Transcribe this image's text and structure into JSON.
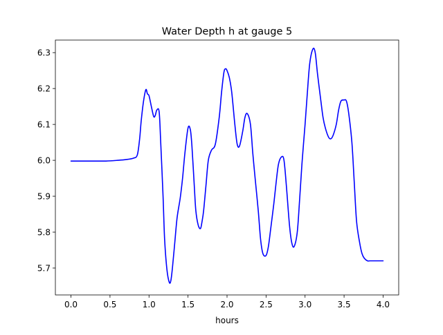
{
  "chart_data": {
    "type": "line",
    "title": "Water Depth h at gauge 5",
    "xlabel": "hours",
    "ylabel": "",
    "xlim": [
      -0.2,
      4.2
    ],
    "ylim": [
      5.625,
      6.335
    ],
    "x_ticks": [
      0.0,
      0.5,
      1.0,
      1.5,
      2.0,
      2.5,
      3.0,
      3.5,
      4.0
    ],
    "x_tick_labels": [
      "0.0",
      "0.5",
      "1.0",
      "1.5",
      "2.0",
      "2.5",
      "3.0",
      "3.5",
      "4.0"
    ],
    "y_ticks": [
      5.7,
      5.8,
      5.9,
      6.0,
      6.1,
      6.2,
      6.3
    ],
    "y_tick_labels": [
      "5.7",
      "5.8",
      "5.9",
      "6.0",
      "6.1",
      "6.2",
      "6.3"
    ],
    "grid": false,
    "legend": "none",
    "series": [
      {
        "color": "#0000ff",
        "x": [
          0.0,
          0.3,
          0.45,
          0.6,
          0.7,
          0.8,
          0.85,
          0.88,
          0.9,
          0.93,
          0.96,
          0.98,
          1.0,
          1.03,
          1.06,
          1.08,
          1.1,
          1.13,
          1.15,
          1.18,
          1.2,
          1.23,
          1.26,
          1.28,
          1.3,
          1.33,
          1.36,
          1.4,
          1.43,
          1.46,
          1.5,
          1.53,
          1.55,
          1.58,
          1.6,
          1.63,
          1.66,
          1.68,
          1.7,
          1.73,
          1.76,
          1.8,
          1.85,
          1.9,
          1.93,
          1.96,
          1.98,
          2.0,
          2.03,
          2.06,
          2.1,
          2.13,
          2.16,
          2.2,
          2.23,
          2.26,
          2.3,
          2.33,
          2.36,
          2.4,
          2.43,
          2.46,
          2.5,
          2.53,
          2.56,
          2.6,
          2.63,
          2.66,
          2.7,
          2.73,
          2.76,
          2.8,
          2.83,
          2.86,
          2.9,
          2.93,
          2.96,
          3.0,
          3.03,
          3.06,
          3.1,
          3.13,
          3.16,
          3.2,
          3.23,
          3.26,
          3.3,
          3.33,
          3.36,
          3.4,
          3.43,
          3.46,
          3.5,
          3.53,
          3.56,
          3.6,
          3.63,
          3.66,
          3.7,
          3.73,
          3.76,
          3.8,
          3.83,
          3.86,
          3.9,
          3.93,
          3.96,
          4.0
        ],
        "y": [
          5.998,
          5.998,
          5.998,
          6.0,
          6.002,
          6.006,
          6.015,
          6.06,
          6.11,
          6.165,
          6.197,
          6.185,
          6.18,
          6.15,
          6.122,
          6.125,
          6.14,
          6.135,
          6.05,
          5.9,
          5.78,
          5.695,
          5.66,
          5.665,
          5.7,
          5.77,
          5.84,
          5.895,
          5.95,
          6.02,
          6.09,
          6.085,
          6.04,
          5.93,
          5.86,
          5.82,
          5.81,
          5.83,
          5.86,
          5.93,
          6.0,
          6.028,
          6.045,
          6.12,
          6.19,
          6.245,
          6.255,
          6.25,
          6.23,
          6.19,
          6.1,
          6.045,
          6.04,
          6.08,
          6.12,
          6.13,
          6.1,
          6.02,
          5.95,
          5.86,
          5.78,
          5.74,
          5.735,
          5.76,
          5.81,
          5.88,
          5.94,
          5.99,
          6.01,
          6.0,
          5.93,
          5.82,
          5.77,
          5.76,
          5.8,
          5.89,
          5.99,
          6.1,
          6.19,
          6.27,
          6.31,
          6.3,
          6.24,
          6.17,
          6.12,
          6.09,
          6.065,
          6.06,
          6.07,
          6.1,
          6.14,
          6.165,
          6.168,
          6.165,
          6.13,
          6.05,
          5.94,
          5.83,
          5.77,
          5.74,
          5.727,
          5.72,
          5.72,
          5.72,
          5.72,
          5.72,
          5.72,
          5.72
        ]
      }
    ]
  }
}
